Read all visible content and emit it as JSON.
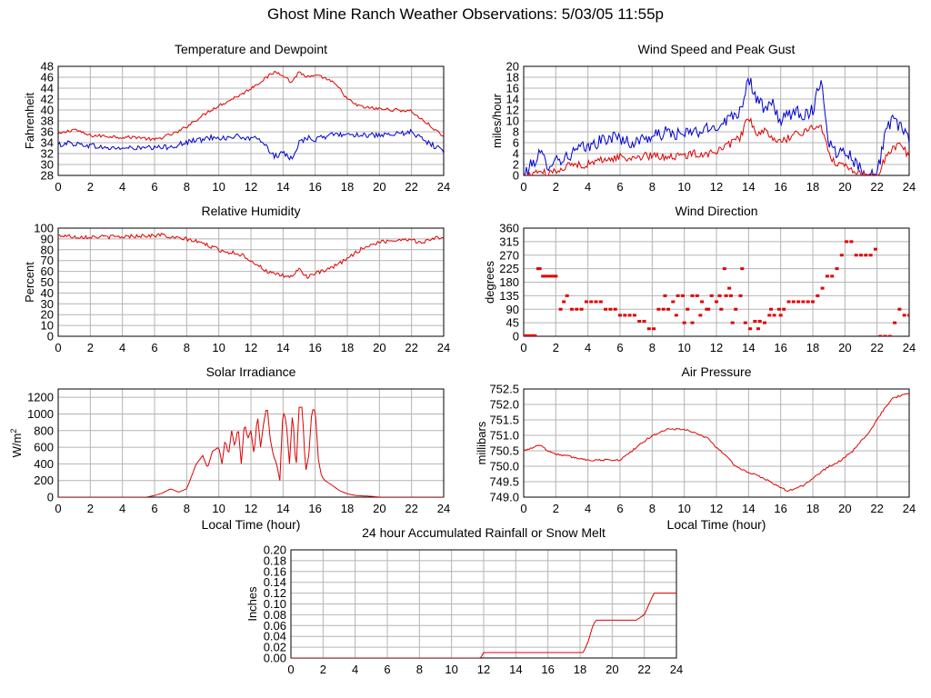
{
  "page": {
    "title": "Ghost Mine Ranch Weather Observations: 5/03/05 11:55p"
  },
  "colors": {
    "red": "#e00000",
    "blue": "#0000cc",
    "grid": "#b4b4b4",
    "frame": "#000000"
  },
  "chart_data": [
    {
      "id": "temp",
      "type": "line",
      "title": "Temperature and Dewpoint",
      "ylabel": "Fahrenheit",
      "xlabel": "",
      "xlim": [
        0,
        24
      ],
      "ylim": [
        28,
        48
      ],
      "x_ticks": [
        0,
        2,
        4,
        6,
        8,
        10,
        12,
        14,
        16,
        18,
        20,
        22,
        24
      ],
      "y_ticks": [
        28,
        30,
        32,
        34,
        36,
        38,
        40,
        42,
        44,
        46,
        48
      ],
      "series": [
        {
          "name": "",
          "color": "#e00000",
          "noise": 0.3,
          "x": [
            0,
            0.5,
            1,
            1.5,
            2,
            3,
            4,
            5,
            6,
            7,
            7.5,
            8,
            8.5,
            9,
            9.5,
            10,
            10.5,
            11,
            11.5,
            12,
            12.5,
            13,
            13.5,
            14,
            14.5,
            15,
            15.5,
            16,
            16.5,
            17,
            17.5,
            18,
            18.5,
            19,
            20,
            21,
            22,
            22.5,
            23,
            24
          ],
          "y": [
            35.5,
            36,
            36.5,
            35.8,
            35.3,
            35.2,
            35,
            35,
            34.5,
            35.5,
            36,
            37,
            38,
            39,
            40,
            40.8,
            41.5,
            42.3,
            43,
            44,
            45,
            46,
            47,
            46.5,
            45,
            47,
            46,
            46.2,
            46,
            45.2,
            44,
            42,
            41,
            40.5,
            40.2,
            40,
            39.8,
            38.5,
            37.5,
            35
          ]
        },
        {
          "name": "",
          "color": "#0000cc",
          "noise": 0.5,
          "x": [
            0,
            0.5,
            1,
            2,
            3,
            4,
            5,
            6,
            7,
            8,
            8.5,
            9,
            9.5,
            10,
            10.5,
            11,
            11.5,
            12,
            12.5,
            13,
            13.5,
            14,
            14.5,
            15,
            15.5,
            16,
            16.5,
            17,
            18,
            19,
            20,
            21,
            22,
            22.5,
            23,
            24
          ],
          "y": [
            33.5,
            34,
            33.8,
            33.5,
            33,
            33,
            33,
            33,
            33.3,
            34,
            34.5,
            34.5,
            35,
            35,
            34.8,
            35.2,
            35,
            34.5,
            35,
            33,
            31.5,
            32,
            31,
            34,
            35,
            34.5,
            35,
            35.5,
            35.5,
            35.5,
            35.2,
            35.5,
            36,
            35,
            34,
            32.5
          ]
        }
      ]
    },
    {
      "id": "wind",
      "type": "line",
      "title": "Wind Speed and Peak Gust",
      "ylabel": "miles/hour",
      "xlabel": "",
      "xlim": [
        0,
        24
      ],
      "ylim": [
        0,
        20
      ],
      "x_ticks": [
        0,
        2,
        4,
        6,
        8,
        10,
        12,
        14,
        16,
        18,
        20,
        22,
        24
      ],
      "y_ticks": [
        0,
        2,
        4,
        6,
        8,
        10,
        12,
        14,
        16,
        18,
        20
      ],
      "series": [
        {
          "name": "",
          "color": "#0000cc",
          "noise": 1.2,
          "x": [
            0,
            0.5,
            1,
            1.5,
            2,
            2.5,
            3,
            3.5,
            4,
            4.5,
            5,
            5.5,
            6,
            6.5,
            7,
            7.5,
            8,
            8.5,
            9,
            9.5,
            10,
            10.5,
            11,
            11.5,
            12,
            12.5,
            13,
            13.5,
            14,
            14.5,
            15,
            15.5,
            16,
            16.5,
            17,
            17.5,
            18,
            18.5,
            19,
            19.5,
            20,
            20.5,
            21,
            21.5,
            22,
            22.5,
            23,
            23.5,
            24
          ],
          "y": [
            0,
            2,
            4,
            2,
            3,
            3,
            4,
            5,
            5,
            6,
            6.5,
            7,
            7,
            6,
            6,
            7,
            7,
            7.5,
            8,
            7.5,
            7.5,
            8,
            8,
            8.5,
            9,
            10,
            11,
            12,
            18,
            14,
            12,
            13,
            10,
            11,
            12,
            11,
            12,
            18,
            6,
            4,
            5,
            3,
            1,
            0.5,
            0,
            8,
            10,
            9,
            6
          ]
        },
        {
          "name": "",
          "color": "#e00000",
          "noise": 0.7,
          "x": [
            0,
            0.5,
            1,
            1.5,
            2,
            2.5,
            3,
            3.5,
            4,
            4.5,
            5,
            5.5,
            6,
            6.5,
            7,
            7.5,
            8,
            8.5,
            9,
            9.5,
            10,
            10.5,
            11,
            11.5,
            12,
            12.5,
            13,
            13.5,
            14,
            14.5,
            15,
            15.5,
            16,
            16.5,
            17,
            17.5,
            18,
            18.5,
            19,
            19.5,
            20,
            20.5,
            21,
            21.5,
            22,
            22.5,
            23,
            23.5,
            24
          ],
          "y": [
            0,
            0,
            1,
            0,
            1,
            1.5,
            2,
            2,
            2,
            2.5,
            3,
            3,
            3.5,
            3,
            3.5,
            3.5,
            3.5,
            3.5,
            3.5,
            3.5,
            3.5,
            4,
            4,
            4,
            4.5,
            5,
            6,
            7,
            11,
            7,
            8,
            7,
            6,
            7,
            7.5,
            8,
            9,
            9,
            4,
            2,
            2,
            1,
            0.5,
            0,
            0,
            3,
            5,
            6,
            3
          ]
        }
      ]
    },
    {
      "id": "humid",
      "type": "line",
      "title": "Relative Humidity",
      "ylabel": "Percent",
      "xlabel": "",
      "xlim": [
        0,
        24
      ],
      "ylim": [
        0,
        100
      ],
      "x_ticks": [
        0,
        2,
        4,
        6,
        8,
        10,
        12,
        14,
        16,
        18,
        20,
        22,
        24
      ],
      "y_ticks": [
        0,
        10,
        20,
        30,
        40,
        50,
        60,
        70,
        80,
        90,
        100
      ],
      "series": [
        {
          "name": "",
          "color": "#e00000",
          "noise": 1.8,
          "x": [
            0,
            0.5,
            1,
            2,
            3,
            4,
            5,
            6,
            6.5,
            7,
            8,
            8.5,
            9,
            9.5,
            10,
            10.5,
            11,
            11.5,
            12,
            12.5,
            13,
            13.5,
            14,
            14.5,
            15,
            15.5,
            16,
            16.5,
            17,
            17.5,
            18,
            18.5,
            19,
            20,
            21,
            22,
            22.5,
            23,
            24
          ],
          "y": [
            93,
            93,
            92,
            92,
            92,
            92,
            93,
            93,
            94,
            91,
            90,
            88,
            86,
            83,
            80,
            78,
            77,
            75,
            70,
            65,
            60,
            57,
            56,
            55,
            62,
            55,
            58,
            60,
            63,
            67,
            72,
            77,
            82,
            87,
            89,
            90,
            86,
            89,
            92
          ]
        }
      ]
    },
    {
      "id": "dir",
      "type": "scatter",
      "title": "Wind Direction",
      "ylabel": "degrees",
      "xlabel": "",
      "xlim": [
        0,
        24
      ],
      "ylim": [
        0,
        360
      ],
      "x_ticks": [
        0,
        2,
        4,
        6,
        8,
        10,
        12,
        14,
        16,
        18,
        20,
        22,
        24
      ],
      "y_ticks": [
        0,
        45,
        90,
        135,
        180,
        225,
        270,
        315,
        360
      ],
      "series": [
        {
          "name": "",
          "color": "#e00000",
          "x": [
            0.1,
            0.3,
            0.5,
            0.7,
            0.9,
            1.0,
            1.2,
            1.4,
            1.6,
            1.8,
            2.0,
            2.3,
            2.5,
            2.7,
            3.0,
            3.3,
            3.6,
            3.9,
            4.2,
            4.5,
            4.8,
            5.1,
            5.4,
            5.7,
            6.0,
            6.3,
            6.6,
            6.9,
            7.2,
            7.5,
            7.8,
            8.1,
            8.4,
            8.7,
            9.0,
            9.3,
            9.6,
            9.9,
            10.2,
            10.5,
            10.8,
            11.1,
            11.4,
            11.7,
            12.0,
            12.3,
            12.6,
            12.9,
            13.2,
            13.5,
            13.8,
            14.1,
            14.4,
            14.7,
            15.0,
            15.3,
            15.6,
            15.9,
            16.2,
            16.5,
            16.8,
            17.1,
            17.4,
            17.7,
            18.0,
            18.3,
            18.6,
            18.9,
            19.2,
            19.5,
            19.8,
            20.1,
            20.4,
            20.7,
            21.0,
            21.3,
            21.6,
            21.9,
            22.2,
            22.5,
            22.8,
            23.1,
            23.4,
            23.7,
            24.0,
            9.5,
            10.5,
            11.5,
            12.2,
            12.8,
            13.6,
            14.6,
            15.4,
            16.0,
            8.8,
            10.0,
            11.0,
            12.5,
            13.0
          ],
          "y": [
            2,
            2,
            2,
            2,
            225,
            225,
            200,
            200,
            200,
            200,
            200,
            90,
            115,
            135,
            90,
            90,
            90,
            115,
            115,
            115,
            115,
            90,
            90,
            90,
            70,
            70,
            70,
            70,
            50,
            50,
            25,
            25,
            90,
            90,
            90,
            115,
            135,
            135,
            90,
            135,
            135,
            115,
            90,
            135,
            115,
            90,
            135,
            135,
            90,
            135,
            45,
            25,
            50,
            50,
            45,
            70,
            70,
            90,
            90,
            115,
            115,
            115,
            115,
            115,
            115,
            135,
            160,
            200,
            200,
            225,
            270,
            315,
            315,
            270,
            270,
            270,
            270,
            290,
            0,
            0,
            0,
            45,
            90,
            70,
            70,
            70,
            45,
            90,
            135,
            160,
            225,
            25,
            90,
            70,
            135,
            45,
            70,
            225,
            45
          ]
        }
      ]
    },
    {
      "id": "solar",
      "type": "line",
      "title": "Solar Irradiance",
      "ylabel": "W/m",
      "ylabel_sup": "2",
      "xlabel": "Local Time (hour)",
      "xlim": [
        0,
        24
      ],
      "ylim": [
        0,
        1300
      ],
      "x_ticks": [
        0,
        2,
        4,
        6,
        8,
        10,
        12,
        14,
        16,
        18,
        20,
        22,
        24
      ],
      "y_ticks": [
        0,
        200,
        400,
        600,
        800,
        1000,
        1200
      ],
      "series": [
        {
          "name": "",
          "color": "#e00000",
          "noise": 0,
          "x": [
            0,
            5.5,
            6,
            6.5,
            7,
            7.5,
            8,
            8.3,
            8.6,
            9,
            9.3,
            9.6,
            10,
            10.2,
            10.4,
            10.6,
            10.8,
            11,
            11.2,
            11.4,
            11.6,
            11.8,
            12,
            12.2,
            12.4,
            12.6,
            12.8,
            13,
            13.2,
            13.4,
            13.6,
            13.8,
            14,
            14.2,
            14.4,
            14.6,
            14.8,
            15,
            15.2,
            15.4,
            15.6,
            15.8,
            16,
            16.2,
            16.4,
            16.6,
            17,
            17.5,
            18,
            18.5,
            19,
            19.5,
            20,
            21,
            24
          ],
          "y": [
            0,
            0,
            20,
            50,
            100,
            60,
            100,
            250,
            400,
            500,
            350,
            550,
            600,
            400,
            700,
            500,
            800,
            600,
            850,
            400,
            900,
            700,
            800,
            500,
            1000,
            600,
            900,
            1100,
            700,
            500,
            400,
            200,
            1050,
            900,
            400,
            1050,
            300,
            1080,
            1080,
            300,
            500,
            1050,
            1050,
            450,
            250,
            200,
            150,
            80,
            40,
            20,
            15,
            10,
            0,
            0,
            0
          ]
        }
      ]
    },
    {
      "id": "press",
      "type": "line",
      "title": "Air Pressure",
      "ylabel": "millibars",
      "xlabel": "Local Time (hour)",
      "xlim": [
        0,
        24
      ],
      "ylim": [
        749,
        752.5
      ],
      "x_ticks": [
        0,
        2,
        4,
        6,
        8,
        10,
        12,
        14,
        16,
        18,
        20,
        22,
        24
      ],
      "y_ticks": [
        749.0,
        749.5,
        750.0,
        750.5,
        751.0,
        751.5,
        752.0,
        752.5
      ],
      "series": [
        {
          "name": "",
          "color": "#e00000",
          "noise": 0.03,
          "x": [
            0,
            0.5,
            1,
            1.5,
            2,
            3,
            4,
            5,
            6,
            6.5,
            7,
            7.5,
            8,
            8.5,
            9,
            9.5,
            10,
            10.5,
            11,
            11.5,
            12,
            12.5,
            13,
            13.5,
            14,
            14.5,
            15,
            15.5,
            16,
            16.5,
            17,
            17.5,
            18,
            18.5,
            19,
            19.5,
            20,
            20.5,
            21,
            21.5,
            22,
            22.5,
            23,
            23.5,
            24
          ],
          "y": [
            750.5,
            750.6,
            750.7,
            750.5,
            750.4,
            750.3,
            750.2,
            750.2,
            750.2,
            750.4,
            750.6,
            750.8,
            751.0,
            751.1,
            751.2,
            751.2,
            751.2,
            751.1,
            751.0,
            750.9,
            750.6,
            750.4,
            750.1,
            749.9,
            749.8,
            749.7,
            749.6,
            749.45,
            749.3,
            749.2,
            749.3,
            749.4,
            749.6,
            749.8,
            750.0,
            750.1,
            750.3,
            750.5,
            750.8,
            751.1,
            751.5,
            751.9,
            752.2,
            752.3,
            752.35
          ]
        }
      ]
    },
    {
      "id": "rain",
      "type": "line",
      "title": "24 hour Accumulated Rainfall or Snow Melt",
      "ylabel": "Inches",
      "xlabel": "",
      "xlim": [
        0,
        24
      ],
      "ylim": [
        0,
        0.2
      ],
      "x_ticks": [
        0,
        2,
        4,
        6,
        8,
        10,
        12,
        14,
        16,
        18,
        20,
        22,
        24
      ],
      "y_ticks": [
        0.0,
        0.02,
        0.04,
        0.06,
        0.08,
        0.1,
        0.12,
        0.14,
        0.16,
        0.18,
        0.2
      ],
      "series": [
        {
          "name": "",
          "color": "#e00000",
          "noise": 0,
          "x": [
            0,
            11.8,
            12.0,
            18.2,
            18.5,
            18.8,
            19.0,
            21.5,
            22.0,
            22.6,
            24
          ],
          "y": [
            0,
            0,
            0.01,
            0.01,
            0.03,
            0.06,
            0.07,
            0.07,
            0.08,
            0.12,
            0.12
          ]
        }
      ]
    }
  ]
}
